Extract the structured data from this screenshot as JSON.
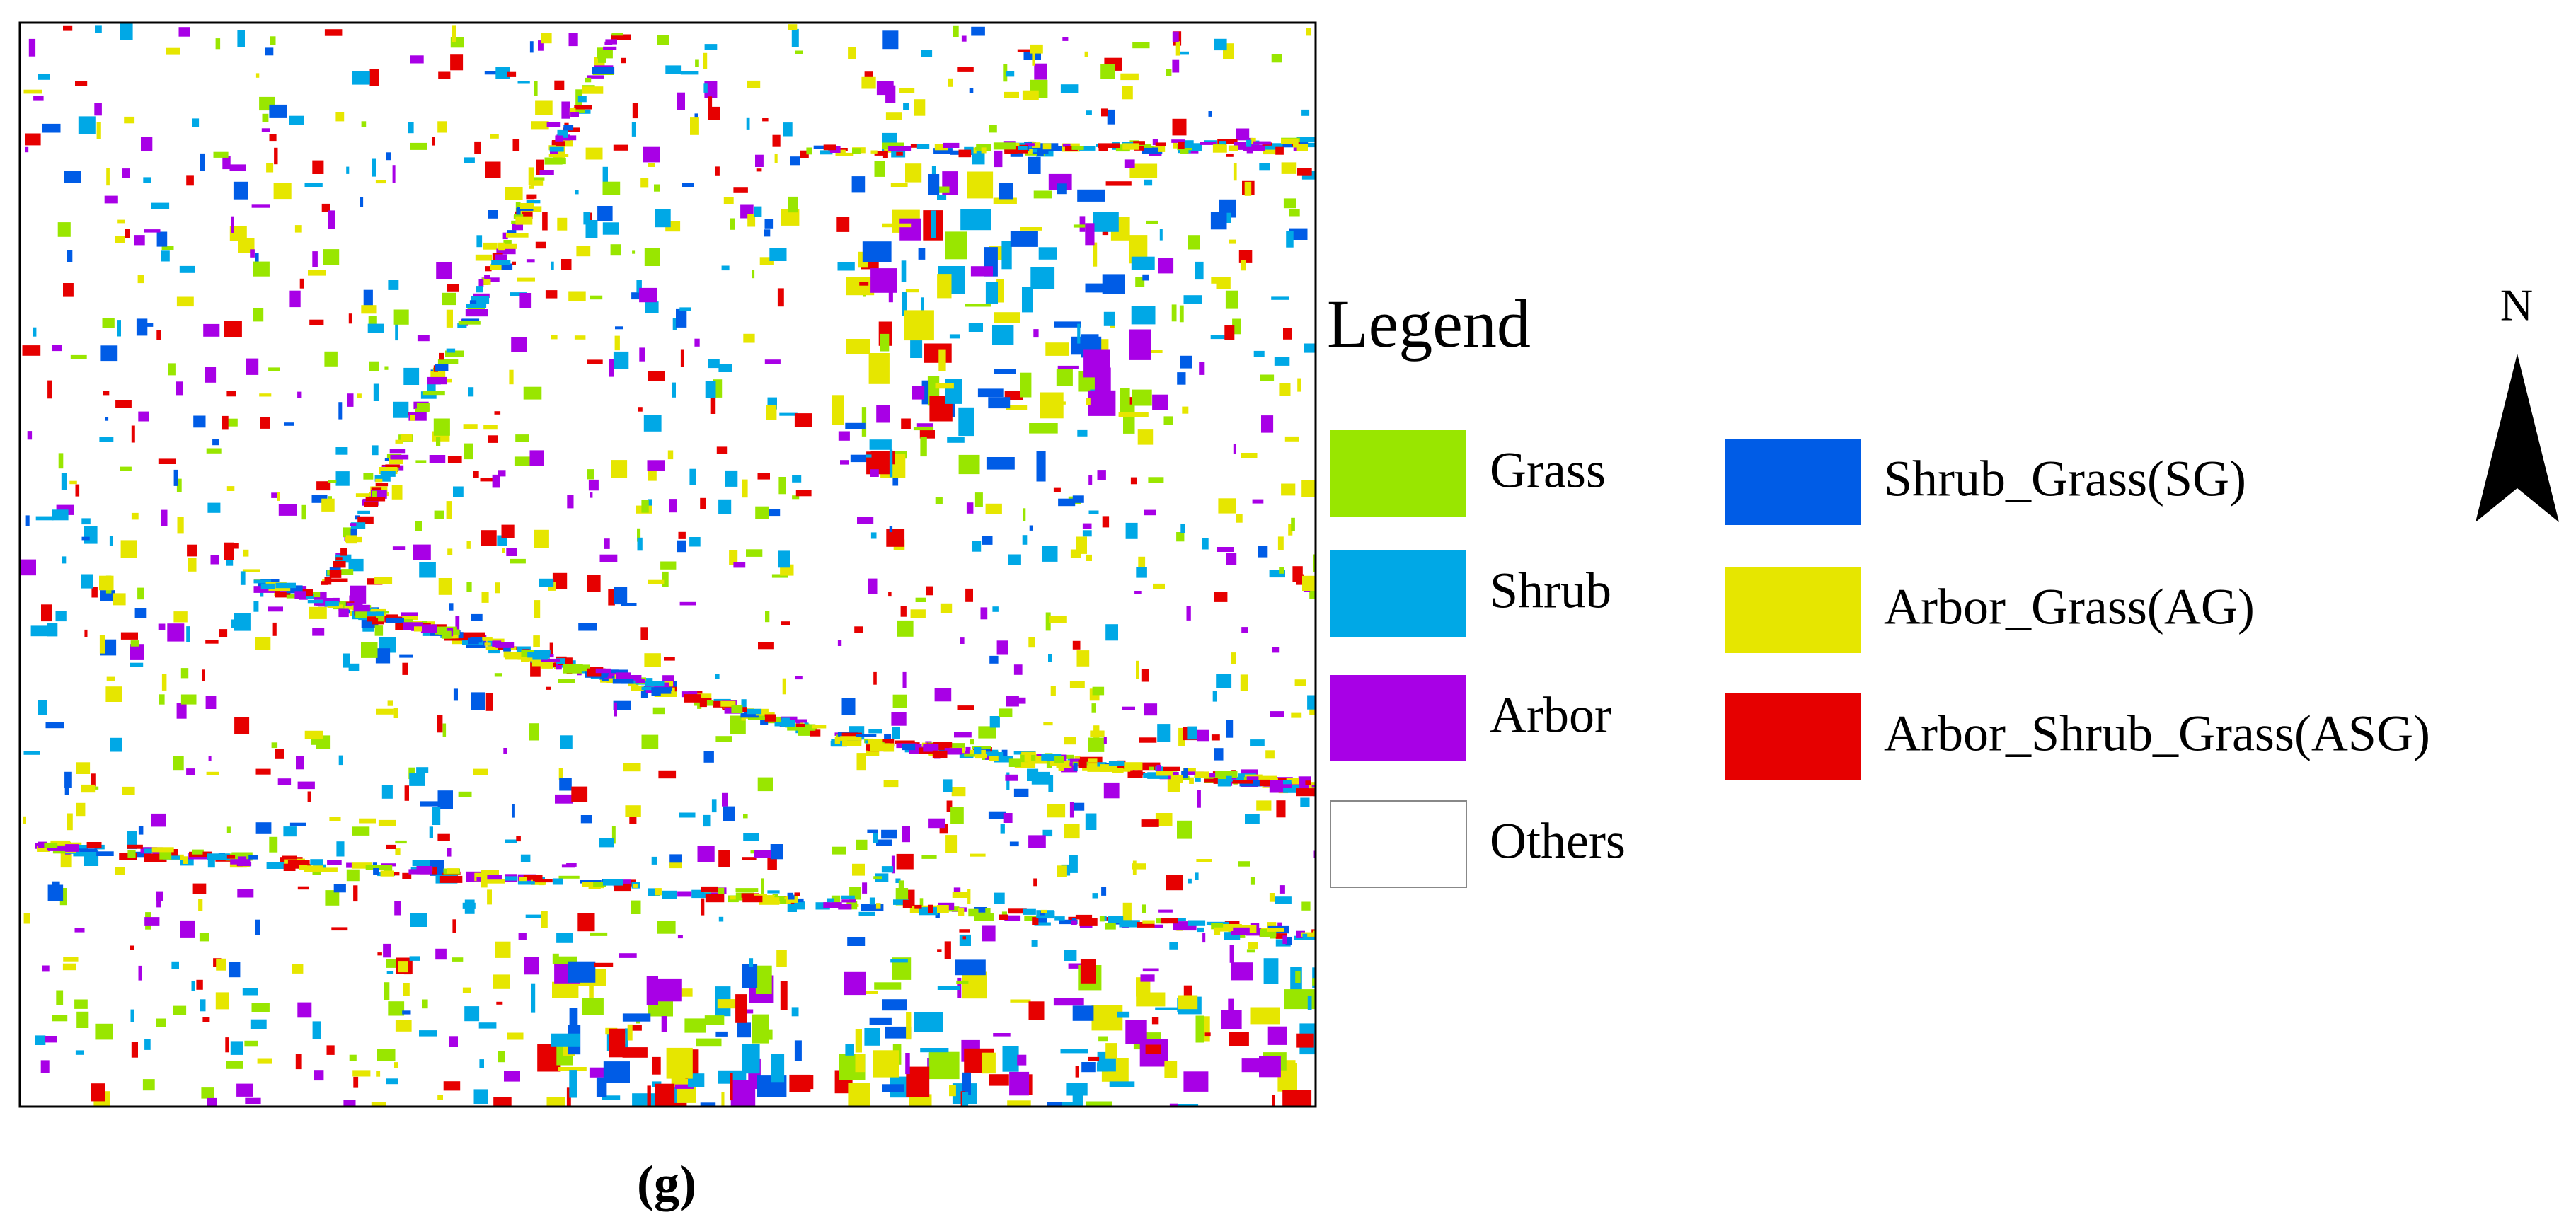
{
  "legend": {
    "title": "Legend",
    "items": [
      {
        "label": "Grass",
        "color": "#99e600"
      },
      {
        "label": "Shrub",
        "color": "#00a8e6"
      },
      {
        "label": "Arbor",
        "color": "#a800e6"
      },
      {
        "label": "Others",
        "color": "#ffffff"
      },
      {
        "label": "Shrub_Grass(SG)",
        "color": "#005ce6"
      },
      {
        "label": "Arbor_Grass(AG)",
        "color": "#e6e600"
      },
      {
        "label": "Arbor_Shrub_Grass(ASG)",
        "color": "#e60000"
      }
    ]
  },
  "north_label": "N",
  "caption": "(g)"
}
